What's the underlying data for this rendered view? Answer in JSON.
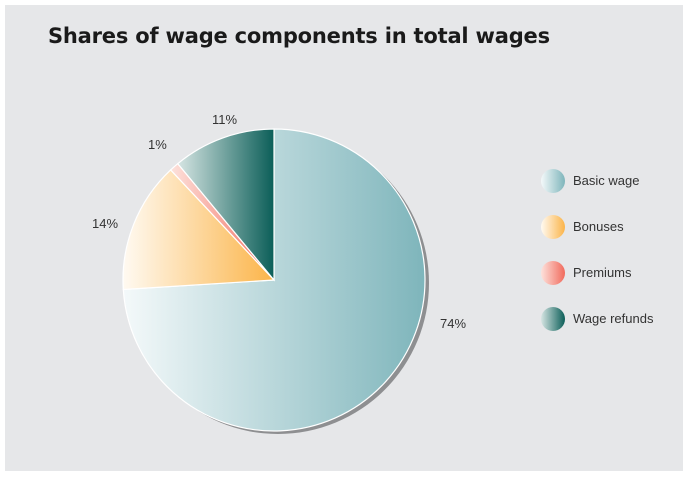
{
  "chart_data": {
    "type": "pie",
    "title": "Shares of wage components in total wages",
    "slices": [
      {
        "label": "Basic wage",
        "value": 74,
        "display": "74%",
        "color": "#7eb5bb",
        "light": "#f4f9fa"
      },
      {
        "label": "Bonuses",
        "value": 14,
        "display": "14%",
        "color": "#fbb448",
        "light": "#fffaf2"
      },
      {
        "label": "Premiums",
        "value": 1,
        "display": "1%",
        "color": "#f16a5c",
        "light": "#fde2dc"
      },
      {
        "label": "Wage refunds",
        "value": 11,
        "display": "11%",
        "color": "#0b5e58",
        "light": "#d6e5e3"
      }
    ],
    "legend_position": "right",
    "start_angle_deg": 0,
    "direction": "clockwise"
  }
}
